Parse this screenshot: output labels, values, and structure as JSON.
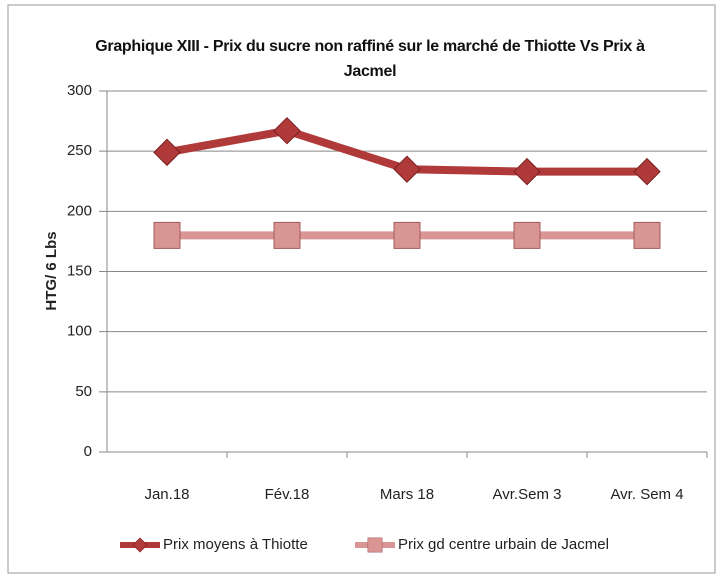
{
  "chart_data": {
    "type": "line",
    "title": "Graphique XIII - Prix du sucre non raffiné sur le marché de Thiotte Vs Prix à Jacmel",
    "y_label": "HTG/ 6 Lbs",
    "categories": [
      "Jan.18",
      "Fév.18",
      "Mars 18",
      "Avr.Sem 3",
      "Avr. Sem 4"
    ],
    "series": [
      {
        "name": "Prix moyens à Thiotte",
        "color": "#b03a3a",
        "marker": "diamond",
        "values": [
          249,
          267,
          235,
          233,
          233
        ]
      },
      {
        "name": "Prix gd centre urbain de Jacmel",
        "color": "#d99594",
        "marker": "square",
        "values": [
          180,
          180,
          180,
          180,
          180
        ]
      }
    ],
    "ylim": [
      0,
      300
    ],
    "yticks": [
      0,
      50,
      100,
      150,
      200,
      250,
      300
    ],
    "grid": true,
    "legend": "bottom"
  }
}
